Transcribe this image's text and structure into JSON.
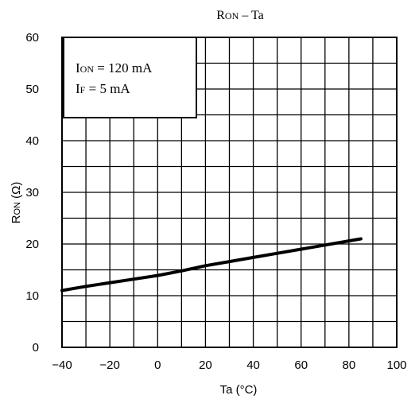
{
  "chart_data": {
    "type": "line",
    "title": {
      "main": "R",
      "sub": "ON",
      "rest": " – Ta"
    },
    "xlabel": "Ta   (°C)",
    "ylabel": {
      "main": "R",
      "sub": "ON",
      "unit": "   (Ω)"
    },
    "xlim": [
      -40,
      100
    ],
    "ylim": [
      0,
      60
    ],
    "x_ticks": [
      -40,
      -20,
      0,
      20,
      40,
      60,
      80,
      100
    ],
    "y_ticks": [
      0,
      10,
      20,
      30,
      40,
      50,
      60
    ],
    "x_tick_labels": [
      "−40",
      "−20",
      "0",
      "20",
      "40",
      "60",
      "80",
      "100"
    ],
    "y_tick_labels": [
      "0",
      "10",
      "20",
      "30",
      "40",
      "50",
      "60"
    ],
    "grid": true,
    "annotations": [
      {
        "main": "I",
        "sub": "ON",
        "rest": " = 120 mA"
      },
      {
        "main": "I",
        "sub": "F",
        "rest": " = 5 mA"
      }
    ],
    "series": [
      {
        "x": [
          -40,
          -30,
          -20,
          -10,
          0,
          10,
          20,
          30,
          40,
          50,
          60,
          70,
          80,
          85
        ],
        "y": [
          11.0,
          11.8,
          12.5,
          13.2,
          13.9,
          14.8,
          15.8,
          16.6,
          17.4,
          18.2,
          19.0,
          19.8,
          20.6,
          21.0
        ]
      }
    ]
  },
  "colors": {
    "line": "#000000",
    "grid": "#000000",
    "background": "#ffffff"
  }
}
